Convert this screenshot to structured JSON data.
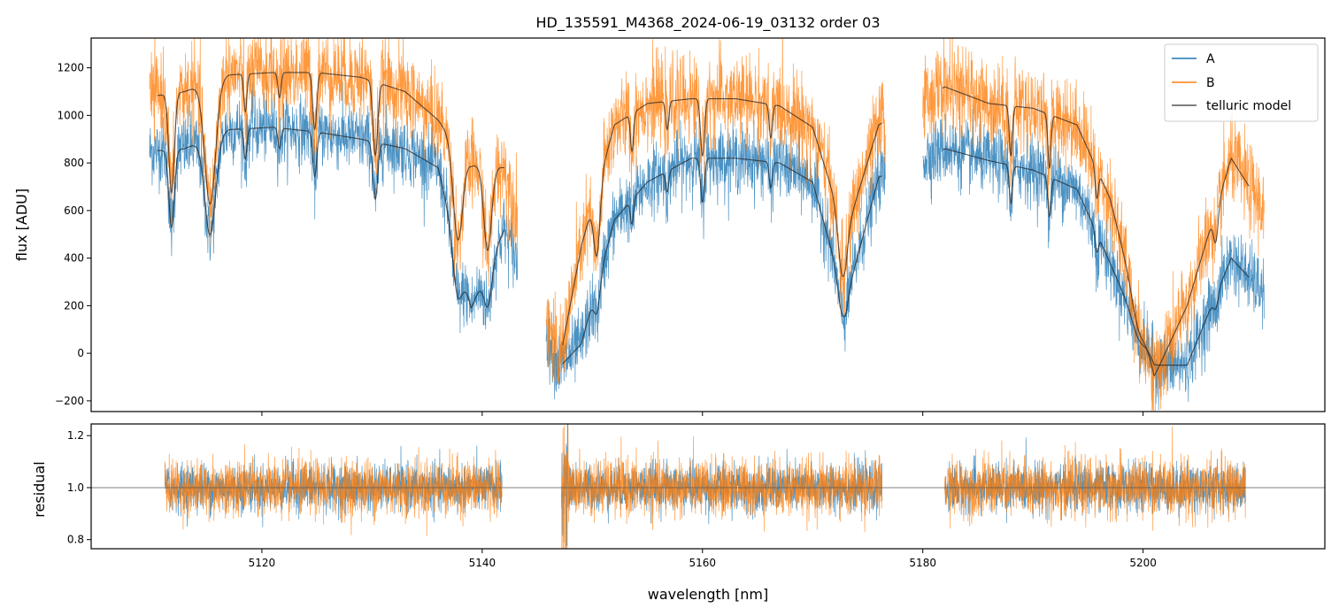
{
  "chart_data": [
    {
      "type": "line",
      "title": "HD_135591_M4368_2024-06-19_03132  order 03",
      "xlabel": "",
      "ylabel": "flux [ADU]",
      "xlim": [
        5104.5,
        5216.5
      ],
      "ylim": [
        -245,
        1325
      ],
      "xticks": [
        5120,
        5140,
        5160,
        5180,
        5200
      ],
      "xtick_labels": [],
      "yticks": [
        -200,
        0,
        200,
        400,
        600,
        800,
        1000,
        1200
      ],
      "ytick_labels": [
        "−200",
        "0",
        "200",
        "400",
        "600",
        "800",
        "1000",
        "1200"
      ],
      "legend": {
        "position": "top-right",
        "entries": [
          {
            "label": "A",
            "color": "#1f77b4"
          },
          {
            "label": "B",
            "color": "#ff7f0e"
          },
          {
            "label": "telluric model",
            "color": "#555555"
          }
        ]
      },
      "segments": [
        {
          "x0": 5109.8,
          "x1": 5143.2,
          "model_x0": 5110.5,
          "model_x1": 5142.0
        },
        {
          "x0": 5145.8,
          "x1": 5176.6,
          "model_x0": 5147.3,
          "model_x1": 5176.3
        },
        {
          "x0": 5180.0,
          "x1": 5211.0,
          "model_x0": 5181.8,
          "model_x1": 5209.6
        }
      ],
      "series": [
        {
          "name": "A",
          "color": "#1f77b4",
          "continuum": [
            [
              5110,
              850
            ],
            [
              5113,
              860
            ],
            [
              5117,
              940
            ],
            [
              5121,
              950
            ],
            [
              5125,
              930
            ],
            [
              5129,
              900
            ],
            [
              5133,
              860
            ],
            [
              5136,
              780
            ],
            [
              5139,
              190
            ],
            [
              5142,
              520
            ],
            [
              5147,
              -60
            ],
            [
              5149,
              40
            ],
            [
              5152,
              560
            ],
            [
              5155,
              720
            ],
            [
              5159,
              820
            ],
            [
              5163,
              820
            ],
            [
              5167,
              800
            ],
            [
              5170,
              720
            ],
            [
              5173,
              220
            ],
            [
              5176,
              740
            ],
            [
              5182,
              860
            ],
            [
              5186,
              810
            ],
            [
              5190,
              770
            ],
            [
              5194,
              690
            ],
            [
              5197,
              380
            ],
            [
              5201,
              -50
            ],
            [
              5204,
              -50
            ],
            [
              5208,
              400
            ],
            [
              5211,
              250
            ]
          ],
          "noise": 70
        },
        {
          "name": "B",
          "color": "#ff7f0e",
          "continuum": [
            [
              5110,
              1080
            ],
            [
              5113,
              1100
            ],
            [
              5117,
              1170
            ],
            [
              5121,
              1180
            ],
            [
              5125,
              1180
            ],
            [
              5129,
              1160
            ],
            [
              5133,
              1100
            ],
            [
              5136,
              980
            ],
            [
              5139,
              790
            ],
            [
              5142,
              780
            ],
            [
              5147,
              -40
            ],
            [
              5149,
              450
            ],
            [
              5152,
              960
            ],
            [
              5155,
              1050
            ],
            [
              5159,
              1070
            ],
            [
              5163,
              1070
            ],
            [
              5167,
              1040
            ],
            [
              5170,
              950
            ],
            [
              5173,
              500
            ],
            [
              5176,
              960
            ],
            [
              5182,
              1120
            ],
            [
              5186,
              1050
            ],
            [
              5190,
              1030
            ],
            [
              5194,
              960
            ],
            [
              5197,
              650
            ],
            [
              5201,
              -100
            ],
            [
              5204,
              200
            ],
            [
              5208,
              820
            ],
            [
              5211,
              600
            ]
          ],
          "noise": 90
        }
      ],
      "absorption_lines": [
        {
          "x": 5111.8,
          "depth": 0.85,
          "width": 0.35
        },
        {
          "x": 5115.3,
          "depth": 1.0,
          "width": 0.7
        },
        {
          "x": 5118.5,
          "depth": 0.3,
          "width": 0.2
        },
        {
          "x": 5121.6,
          "depth": 0.2,
          "width": 0.2
        },
        {
          "x": 5124.8,
          "depth": 0.45,
          "width": 0.25
        },
        {
          "x": 5130.3,
          "depth": 0.6,
          "width": 0.3
        },
        {
          "x": 5137.8,
          "depth": 1.0,
          "width": 0.6
        },
        {
          "x": 5140.5,
          "depth": 1.0,
          "width": 0.5
        },
        {
          "x": 5150.4,
          "depth": 0.9,
          "width": 0.4
        },
        {
          "x": 5153.6,
          "depth": 0.35,
          "width": 0.2
        },
        {
          "x": 5156.8,
          "depth": 0.25,
          "width": 0.2
        },
        {
          "x": 5160.0,
          "depth": 0.5,
          "width": 0.25
        },
        {
          "x": 5166.2,
          "depth": 0.3,
          "width": 0.2
        },
        {
          "x": 5172.7,
          "depth": 0.9,
          "width": 0.5
        },
        {
          "x": 5188.0,
          "depth": 0.45,
          "width": 0.2
        },
        {
          "x": 5191.5,
          "depth": 0.5,
          "width": 0.2
        },
        {
          "x": 5195.8,
          "depth": 0.35,
          "width": 0.2
        },
        {
          "x": 5199.8,
          "depth": 1.0,
          "width": 0.8
        },
        {
          "x": 5206.6,
          "depth": 0.5,
          "width": 0.3
        }
      ]
    },
    {
      "type": "line",
      "title": "",
      "xlabel": "wavelength [nm]",
      "ylabel": "residual",
      "xlim": [
        5104.5,
        5216.5
      ],
      "ylim": [
        0.765,
        1.245
      ],
      "xticks": [
        5120,
        5140,
        5160,
        5180,
        5200
      ],
      "xtick_labels": [
        "5120",
        "5140",
        "5160",
        "5180",
        "5200"
      ],
      "yticks": [
        0.8,
        1.0,
        1.2
      ],
      "ytick_labels": [
        "0.8",
        "1.0",
        "1.2"
      ],
      "reference_line": 1.0,
      "segments": [
        {
          "x0": 5111.2,
          "x1": 5141.8
        },
        {
          "x0": 5147.2,
          "x1": 5176.3
        },
        {
          "x0": 5182.0,
          "x1": 5209.3
        }
      ],
      "series": [
        {
          "name": "A",
          "color": "#1f77b4",
          "center": 1.0,
          "spread": 0.09
        },
        {
          "name": "B",
          "color": "#ff7f0e",
          "center": 1.0,
          "spread": 0.11
        }
      ]
    }
  ]
}
